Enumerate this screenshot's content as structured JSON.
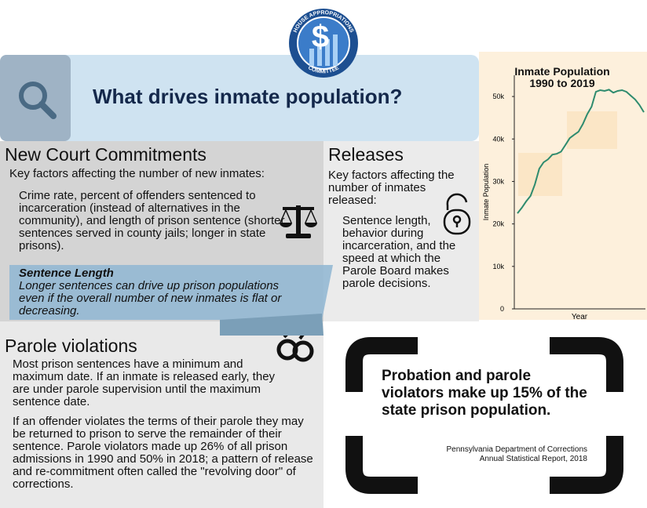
{
  "logo": {
    "top": "HOUSE APPROPRIATIONS",
    "bottom": "COMMITTEE",
    "symbol": "$"
  },
  "header": {
    "title": "What drives inmate population?"
  },
  "new_commitments": {
    "heading": "New Court Commitments",
    "intro": "Key factors affecting the number of new inmates:",
    "body": "Crime rate, percent of offenders sentenced to incarceration (instead of alternatives in the community), and length of prison sentence (shorter sentences served in county jails; longer in state prisons)."
  },
  "callout": {
    "heading": "Sentence Length",
    "body": "Longer sentences can drive up prison populations even if the overall number of new inmates is flat or decreasing."
  },
  "releases": {
    "heading": "Releases",
    "intro": "Key factors affecting the number of inmates released:",
    "body": "Sentence length, behavior during incarceration, and the speed at which the Parole Board makes parole decisions."
  },
  "parole": {
    "heading": "Parole violations",
    "paragraphs": [
      "Most prison sentences have a minimum and maximum date. If an inmate is released early, they are under parole supervision until the maximum sentence date.",
      "If an offender violates the terms of their parole they may be returned to prison to serve the remainder of their sentence. Parole violators made up 26% of all prison admissions in 1990 and 50% in 2018; a pattern of release and re-commitment often called the \"revolving door\" of corrections."
    ]
  },
  "quote": {
    "text": "Probation and parole violators make up 15% of the state prison population.",
    "source": [
      "Pennsylvania Department of Corrections",
      "Annual Statistical Report, 2018"
    ]
  },
  "chart_data": {
    "type": "line",
    "title": "Inmate Population\n1990 to 2019",
    "y_label": "Inmate Population",
    "x_label": "Year",
    "color": "#2e8b6e",
    "values": [
      22500,
      23800,
      25300,
      26600,
      29300,
      33000,
      34500,
      35200,
      36300,
      36500,
      37000,
      38600,
      40200,
      41000,
      41700,
      43500,
      45800,
      47600,
      51100,
      51500,
      51300,
      51600,
      50900,
      51300,
      51500,
      51100,
      50200,
      49300,
      48000,
      46300
    ],
    "ylim": [
      0,
      55000
    ],
    "yticks": [
      0,
      {
        "value": 10000,
        "label": "10k"
      },
      {
        "value": 20000,
        "label": "20k"
      },
      {
        "value": 30000,
        "label": "30k"
      },
      {
        "value": 40000,
        "label": "40k"
      },
      {
        "value": 50000,
        "label": "50k"
      }
    ]
  }
}
